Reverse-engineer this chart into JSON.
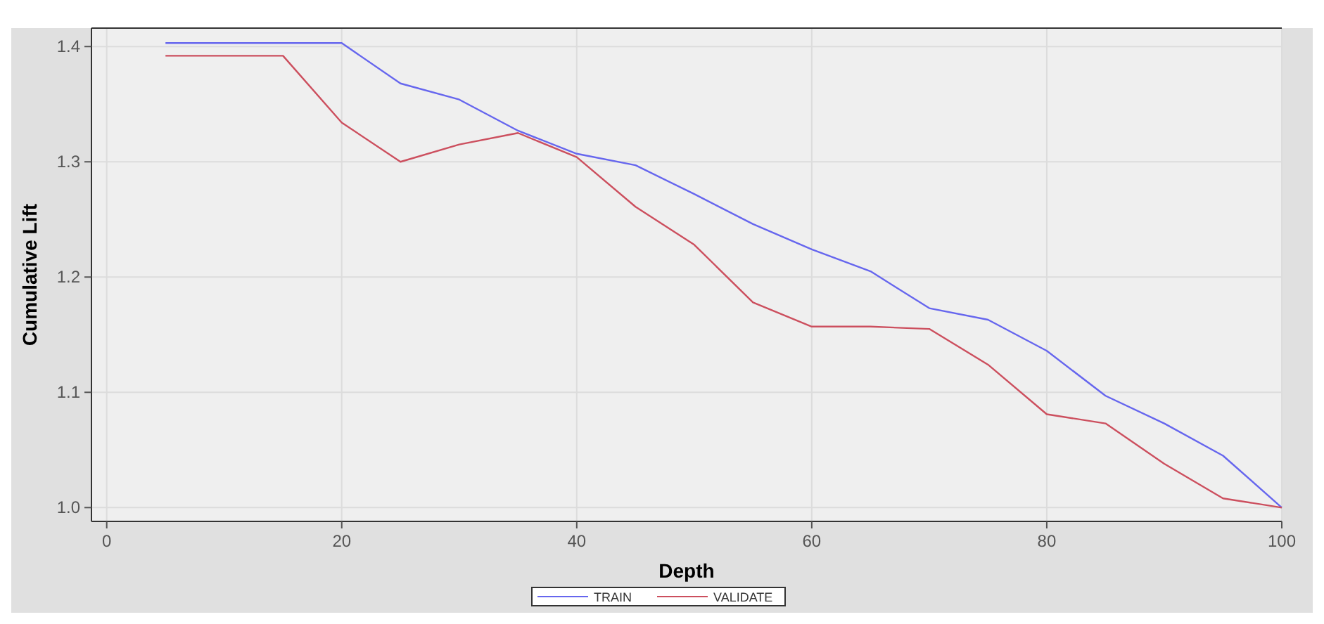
{
  "chart_data": {
    "type": "line",
    "xlabel": "Depth",
    "ylabel": "Cumulative Lift",
    "x": [
      5,
      10,
      15,
      20,
      25,
      30,
      35,
      40,
      45,
      50,
      55,
      60,
      65,
      70,
      75,
      80,
      85,
      90,
      95,
      100
    ],
    "series": [
      {
        "name": "TRAIN",
        "color": "#6666ee",
        "values": [
          1.403,
          1.403,
          1.403,
          1.403,
          1.368,
          1.354,
          1.327,
          1.307,
          1.297,
          1.272,
          1.246,
          1.224,
          1.205,
          1.173,
          1.163,
          1.136,
          1.097,
          1.073,
          1.045,
          1.0
        ]
      },
      {
        "name": "VALIDATE",
        "color": "#cc4f5e",
        "values": [
          1.392,
          1.392,
          1.392,
          1.334,
          1.3,
          1.315,
          1.325,
          1.304,
          1.261,
          1.228,
          1.178,
          1.157,
          1.157,
          1.155,
          1.124,
          1.081,
          1.073,
          1.038,
          1.008,
          1.0
        ]
      }
    ],
    "xlim": [
      -1.3,
      100
    ],
    "ylim": [
      0.988,
      1.416
    ],
    "xticks": [
      0,
      20,
      40,
      60,
      80,
      100
    ],
    "yticks": [
      {
        "value": 1,
        "label": "1.0"
      },
      1.1,
      1.2,
      1.3,
      1.4
    ],
    "grid": true,
    "legend": "bottom",
    "line_style": "solid",
    "marker": "none"
  }
}
